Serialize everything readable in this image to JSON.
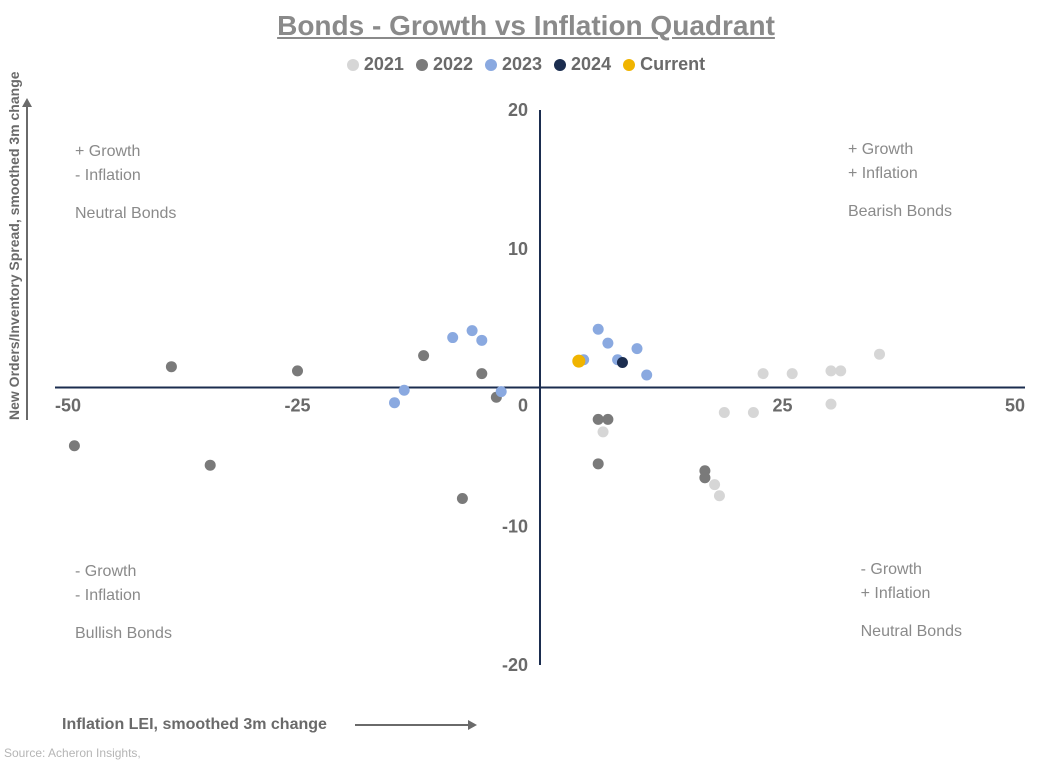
{
  "title": "Bonds - Growth vs Inflation Quadrant",
  "legend_items": [
    {
      "label": "2021",
      "color": "#d6d6d6"
    },
    {
      "label": "2022",
      "color": "#7a7a7a"
    },
    {
      "label": "2023",
      "color": "#8aa9e0"
    },
    {
      "label": "2024",
      "color": "#1b2d4f"
    },
    {
      "label": "Current",
      "color": "#f0b400"
    }
  ],
  "axes": {
    "x_title": "Inflation LEI, smoothed 3m change",
    "y_title": "New Orders/Inventory Spread, smoothed 3m change",
    "xlim": [
      -50,
      50
    ],
    "ylim": [
      -20,
      20
    ],
    "x_ticks": [
      -50,
      -25,
      0,
      25,
      50
    ],
    "y_ticks": [
      -20,
      -10,
      0,
      10,
      20
    ],
    "axis_color": "#1b2d4f",
    "tick_color": "#6a6a6a",
    "tick_fontsize": 18
  },
  "quadrant_labels": {
    "top_left": {
      "line1": "+ Growth",
      "line2": "- Inflation",
      "line3": "Neutral Bonds"
    },
    "top_right": {
      "line1": "+ Growth",
      "line2": "+ Inflation",
      "line3": "Bearish Bonds"
    },
    "bottom_left": {
      "line1": "- Growth",
      "line2": "- Inflation",
      "line3": "Bullish Bonds"
    },
    "bottom_right": {
      "line1": "- Growth",
      "line2": "+ Inflation",
      "line3": "Neutral Bonds"
    }
  },
  "marker_radius": 5.5,
  "series": {
    "2021": {
      "color": "#d6d6d6",
      "points": [
        [
          23,
          1.0
        ],
        [
          26,
          1.0
        ],
        [
          30,
          1.2
        ],
        [
          31,
          1.2
        ],
        [
          30,
          -1.2
        ],
        [
          35,
          2.4
        ],
        [
          19,
          -1.8
        ],
        [
          22,
          -1.8
        ],
        [
          17,
          -6.5
        ],
        [
          18,
          -7.0
        ],
        [
          18.5,
          -7.8
        ],
        [
          6.5,
          -3.2
        ]
      ]
    },
    "2022": {
      "color": "#7a7a7a",
      "points": [
        [
          6,
          -2.3
        ],
        [
          7,
          -2.3
        ],
        [
          6,
          -5.5
        ],
        [
          17,
          -6.0
        ],
        [
          17,
          -6.5
        ],
        [
          -8,
          -8.0
        ],
        [
          -4.5,
          -0.7
        ],
        [
          -6,
          1.0
        ],
        [
          -12,
          2.3
        ],
        [
          -25,
          1.2
        ],
        [
          -34,
          -5.6
        ],
        [
          -38,
          1.5
        ],
        [
          -48,
          -4.2
        ]
      ]
    },
    "2023": {
      "color": "#8aa9e0",
      "points": [
        [
          -15,
          -1.1
        ],
        [
          -14,
          -0.2
        ],
        [
          -4,
          -0.3
        ],
        [
          -9,
          3.6
        ],
        [
          -7,
          4.1
        ],
        [
          -6,
          3.4
        ],
        [
          6,
          4.2
        ],
        [
          7,
          3.2
        ],
        [
          8,
          2.0
        ],
        [
          10,
          2.8
        ],
        [
          11,
          0.9
        ],
        [
          4.5,
          2.0
        ]
      ]
    },
    "2024": {
      "color": "#1b2d4f",
      "points": [
        [
          8.5,
          1.8
        ]
      ]
    },
    "Current": {
      "color": "#f0b400",
      "points": [
        [
          4,
          1.9
        ]
      ],
      "radius": 6.5
    }
  },
  "source": "Source: Acheron Insights,",
  "background_color": "#ffffff"
}
